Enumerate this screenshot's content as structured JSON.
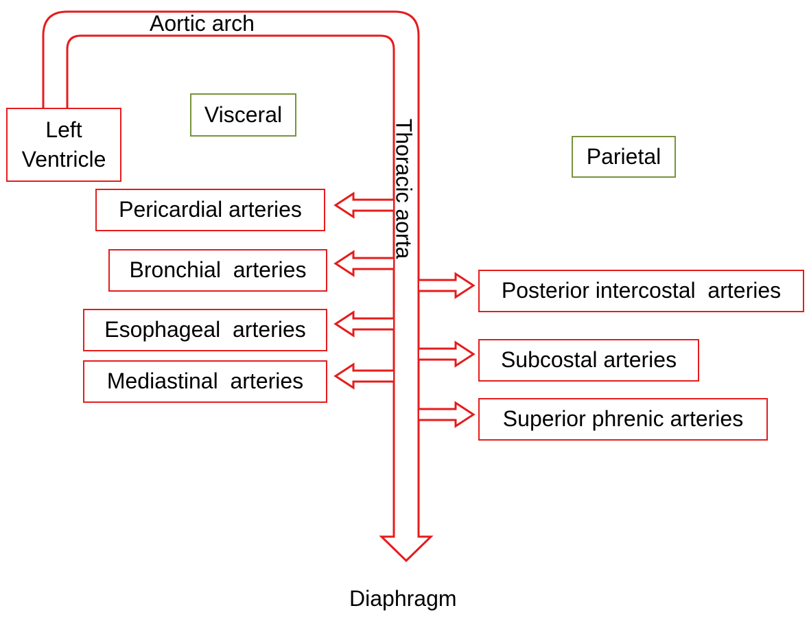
{
  "colors": {
    "vessel": "#e51c1c",
    "category_border": "#77933c",
    "text": "#000000"
  },
  "labels": {
    "aortic_arch": "Aortic arch",
    "thoracic_aorta": "Thoracic aorta",
    "diaphragm": "Diaphragm",
    "left_ventricle": "Left Ventricle",
    "visceral": "Visceral",
    "parietal": "Parietal"
  },
  "visceral_branches": [
    "Pericardial arteries",
    "Bronchial  arteries",
    "Esophageal  arteries",
    "Mediastinal  arteries"
  ],
  "parietal_branches": [
    "Posterior intercostal  arteries",
    "Subcostal arteries",
    "Superior phrenic arteries"
  ]
}
